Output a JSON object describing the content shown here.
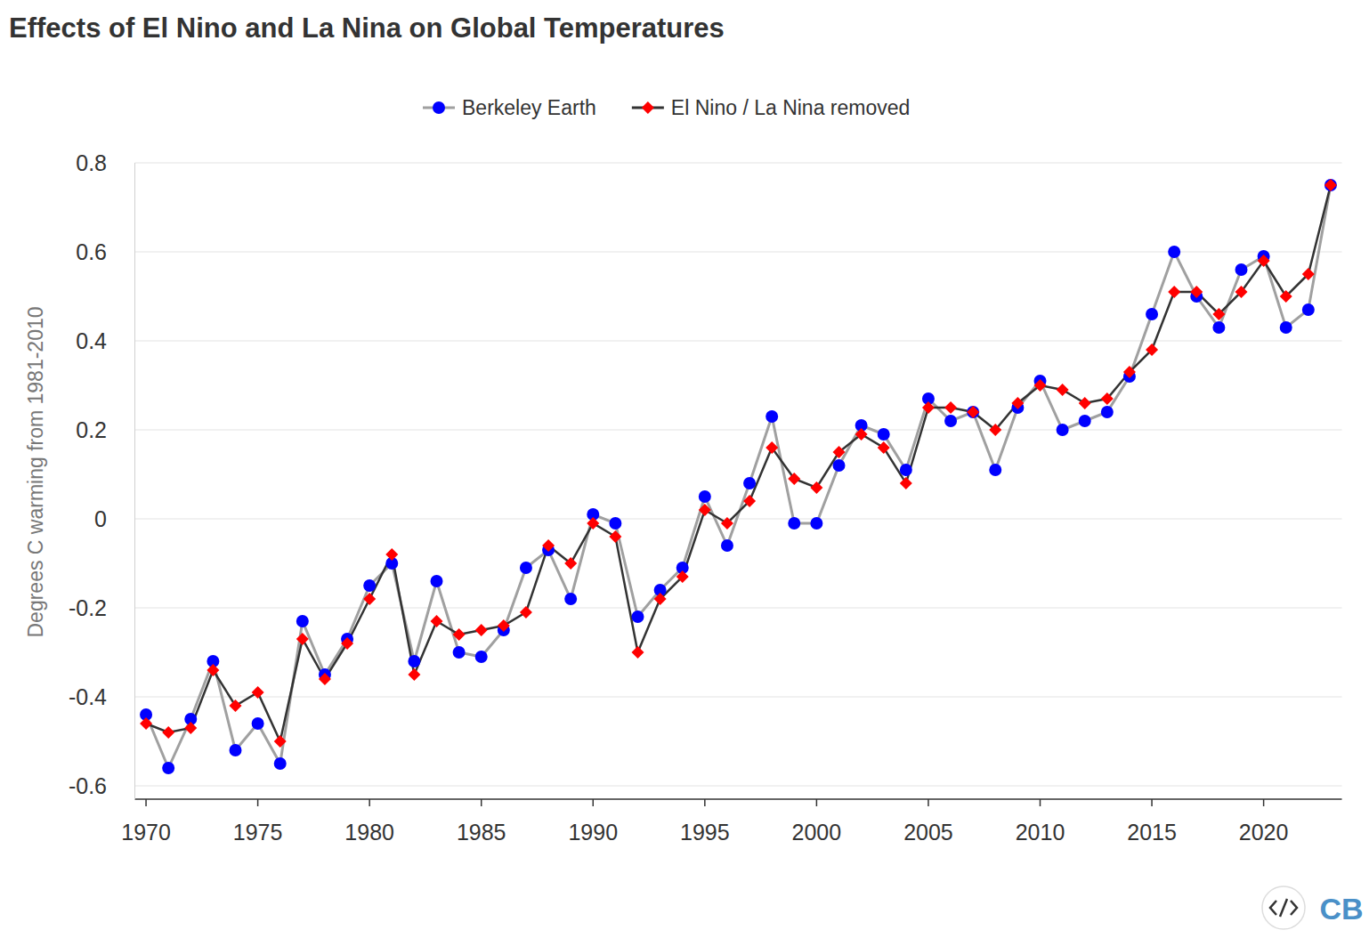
{
  "chart_data": {
    "type": "line",
    "title": "Effects of El Nino and La Nina on Global Temperatures",
    "y_label": "Degrees C warming from 1981-2010",
    "logo": "CB",
    "x": [
      1970,
      1971,
      1972,
      1973,
      1974,
      1975,
      1976,
      1977,
      1978,
      1979,
      1980,
      1981,
      1982,
      1983,
      1984,
      1985,
      1986,
      1987,
      1988,
      1989,
      1990,
      1991,
      1992,
      1993,
      1994,
      1995,
      1996,
      1997,
      1998,
      1999,
      2000,
      2001,
      2002,
      2003,
      2004,
      2005,
      2006,
      2007,
      2008,
      2009,
      2010,
      2011,
      2012,
      2013,
      2014,
      2015,
      2016,
      2017,
      2018,
      2019,
      2020,
      2021,
      2022,
      2023
    ],
    "series": [
      {
        "name": "Berkeley Earth",
        "color": "#0000ff",
        "marker": "circle",
        "line_style": "solid",
        "values": [
          -0.44,
          -0.56,
          -0.45,
          -0.32,
          -0.52,
          -0.46,
          -0.55,
          -0.23,
          -0.35,
          -0.27,
          -0.15,
          -0.1,
          -0.32,
          -0.14,
          -0.3,
          -0.31,
          -0.25,
          -0.11,
          -0.07,
          -0.18,
          0.01,
          -0.01,
          -0.22,
          -0.16,
          -0.11,
          0.05,
          -0.06,
          0.08,
          0.23,
          -0.01,
          -0.01,
          0.12,
          0.21,
          0.19,
          0.11,
          0.27,
          0.22,
          0.24,
          0.11,
          0.25,
          0.31,
          0.2,
          0.22,
          0.24,
          0.32,
          0.46,
          0.6,
          0.5,
          0.43,
          0.56,
          0.59,
          0.43,
          0.47,
          0.75
        ]
      },
      {
        "name": "El Nino / La Nina removed",
        "color": "#ff0000",
        "marker": "diamond",
        "line_style": "solid",
        "values": [
          -0.46,
          -0.48,
          -0.47,
          -0.34,
          -0.42,
          -0.39,
          -0.5,
          -0.27,
          -0.36,
          -0.28,
          -0.18,
          -0.08,
          -0.35,
          -0.23,
          -0.26,
          -0.25,
          -0.24,
          -0.21,
          -0.06,
          -0.1,
          -0.01,
          -0.04,
          -0.3,
          -0.18,
          -0.13,
          0.02,
          -0.01,
          0.04,
          0.16,
          0.09,
          0.07,
          0.15,
          0.19,
          0.16,
          0.08,
          0.25,
          0.25,
          0.24,
          0.2,
          0.26,
          0.3,
          0.29,
          0.26,
          0.27,
          0.33,
          0.38,
          0.51,
          0.51,
          0.46,
          0.51,
          0.58,
          0.5,
          0.55,
          0.75
        ]
      }
    ],
    "xlim": [
      1969.5,
      2023.5
    ],
    "xticks": [
      1970,
      1975,
      1980,
      1985,
      1990,
      1995,
      2000,
      2005,
      2010,
      2015,
      2020
    ],
    "ylim": [
      -0.63,
      0.8
    ],
    "yticks": [
      -0.6,
      -0.4,
      -0.2,
      0,
      0.2,
      0.4,
      0.6,
      0.8
    ],
    "grid": true,
    "legend": "top"
  }
}
